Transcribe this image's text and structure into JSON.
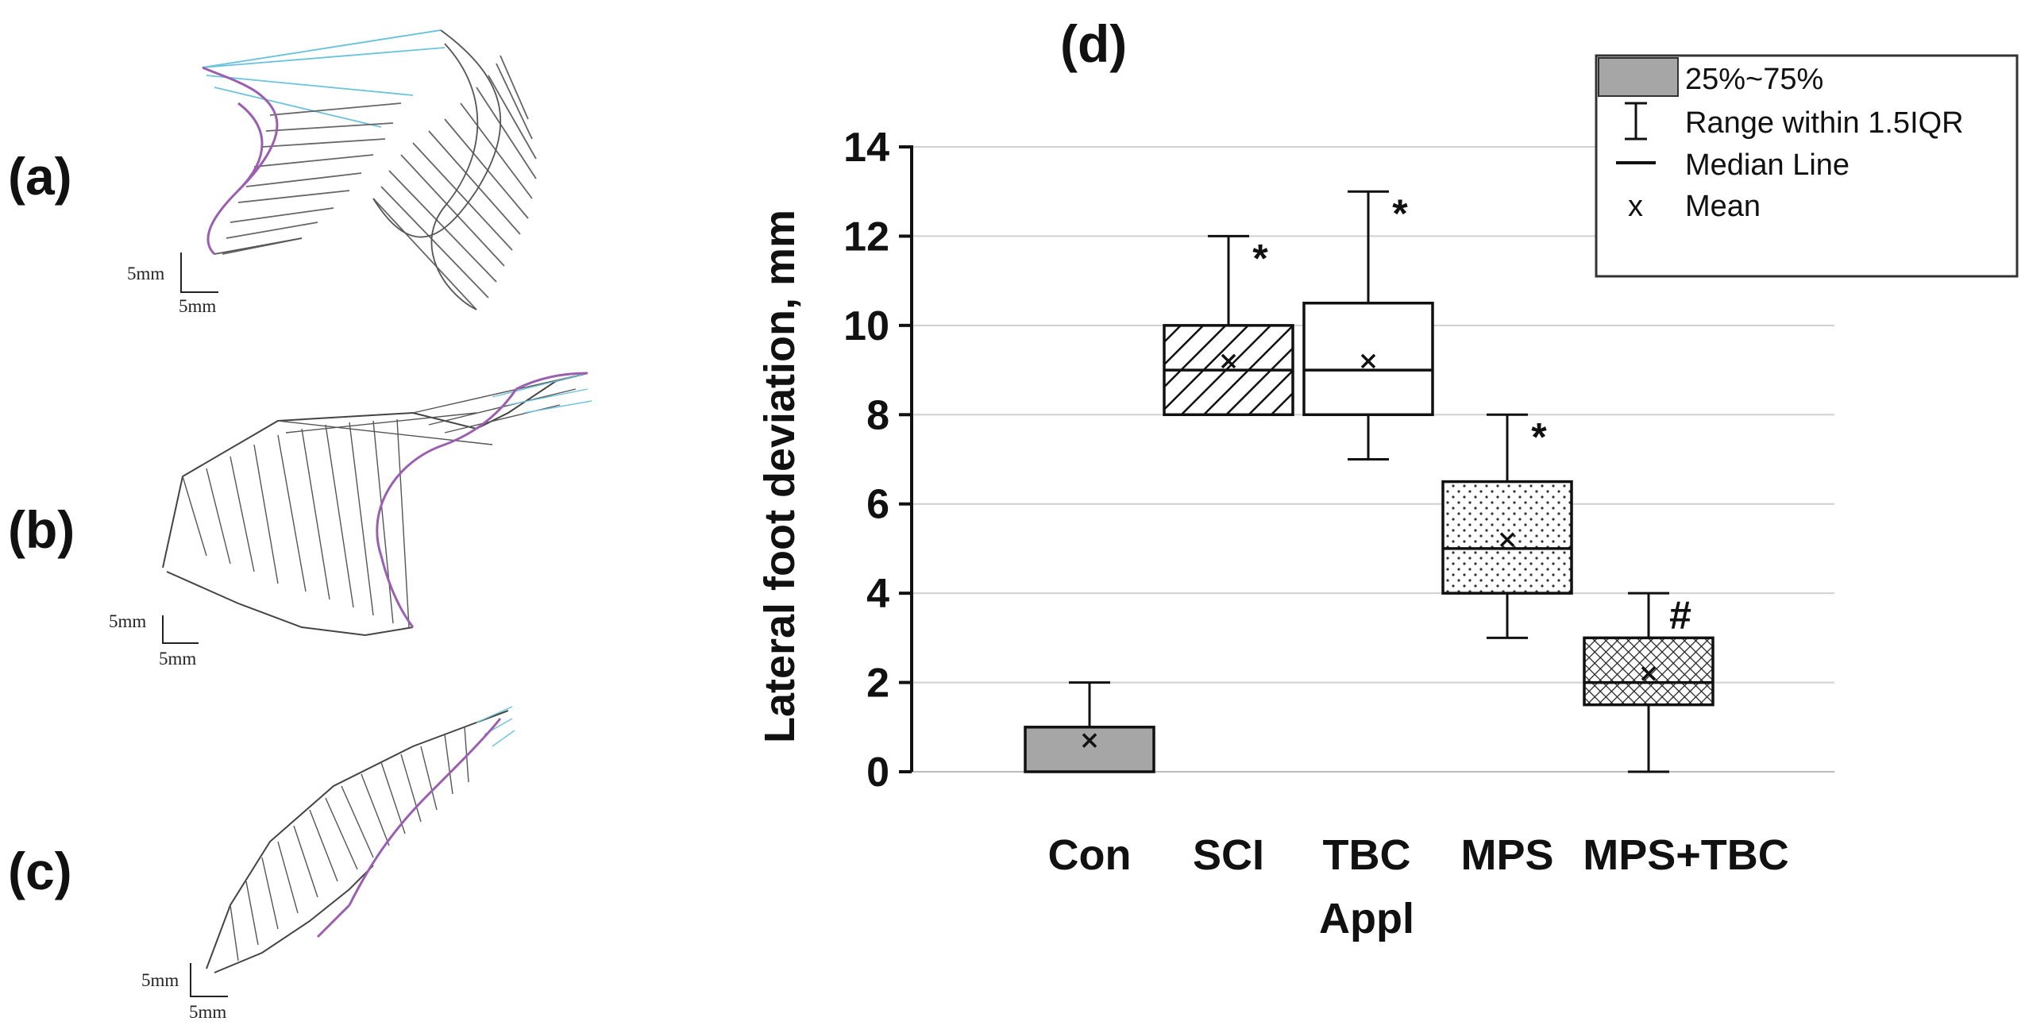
{
  "panels": {
    "a": {
      "label": "(a)",
      "scale_x": "5mm",
      "scale_y": "5mm"
    },
    "b": {
      "label": "(b)",
      "scale_x": "5mm",
      "scale_y": "5mm"
    },
    "c": {
      "label": "(c)",
      "scale_x": "5mm",
      "scale_y": "5mm"
    }
  },
  "chart_data": {
    "type": "boxplot",
    "title": "(d)",
    "xlabel": "",
    "ylabel": "Lateral foot deviation, mm",
    "ylim": [
      0,
      14
    ],
    "yticks": [
      0,
      2,
      4,
      6,
      8,
      10,
      12,
      14
    ],
    "ytick_labels": [
      "0",
      "2",
      "4",
      "6",
      "8",
      "10",
      "12",
      "14"
    ],
    "grid": true,
    "categories": [
      "Con",
      "SCI",
      "TBC Appl",
      "MPS",
      "MPS+TBC"
    ],
    "category_lines": [
      [
        "Con"
      ],
      [
        "SCI"
      ],
      [
        "TBC",
        "Appl"
      ],
      [
        "MPS"
      ],
      [
        "MPS+TBC"
      ]
    ],
    "boxes": [
      {
        "name": "Con",
        "whisker_low": 0,
        "q1": 0,
        "median": 0,
        "q3": 1,
        "whisker_high": 2,
        "mean": 0.7,
        "pattern": "solid-gray",
        "annotation": ""
      },
      {
        "name": "SCI",
        "whisker_low": 8,
        "q1": 8,
        "median": 9,
        "q3": 10,
        "whisker_high": 12,
        "mean": 9.2,
        "pattern": "diagonal-hatch",
        "annotation": "*"
      },
      {
        "name": "TBC Appl",
        "whisker_low": 7,
        "q1": 8,
        "median": 9,
        "q3": 10.5,
        "whisker_high": 13,
        "mean": 9.2,
        "pattern": "none",
        "annotation": "*"
      },
      {
        "name": "MPS",
        "whisker_low": 3,
        "q1": 4,
        "median": 5,
        "q3": 6.5,
        "whisker_high": 8,
        "mean": 5.2,
        "pattern": "dots",
        "annotation": "*"
      },
      {
        "name": "MPS+TBC",
        "whisker_low": 0,
        "q1": 1.5,
        "median": 2,
        "q3": 3,
        "whisker_high": 4,
        "mean": 2.2,
        "pattern": "crosshatch",
        "annotation": "#"
      }
    ],
    "legend": {
      "position": "top-right",
      "entries": [
        "25%~75%",
        "Range within 1.5IQR",
        "Median Line",
        "Mean"
      ],
      "mean_symbol": "x"
    },
    "colors": {
      "box_gray": "#a6a6a6",
      "grid": "#d0d0d0",
      "axis": "#111111",
      "cyan": "#6cc3dc",
      "purple": "#9b5fb0",
      "mesh": "#555555"
    }
  }
}
